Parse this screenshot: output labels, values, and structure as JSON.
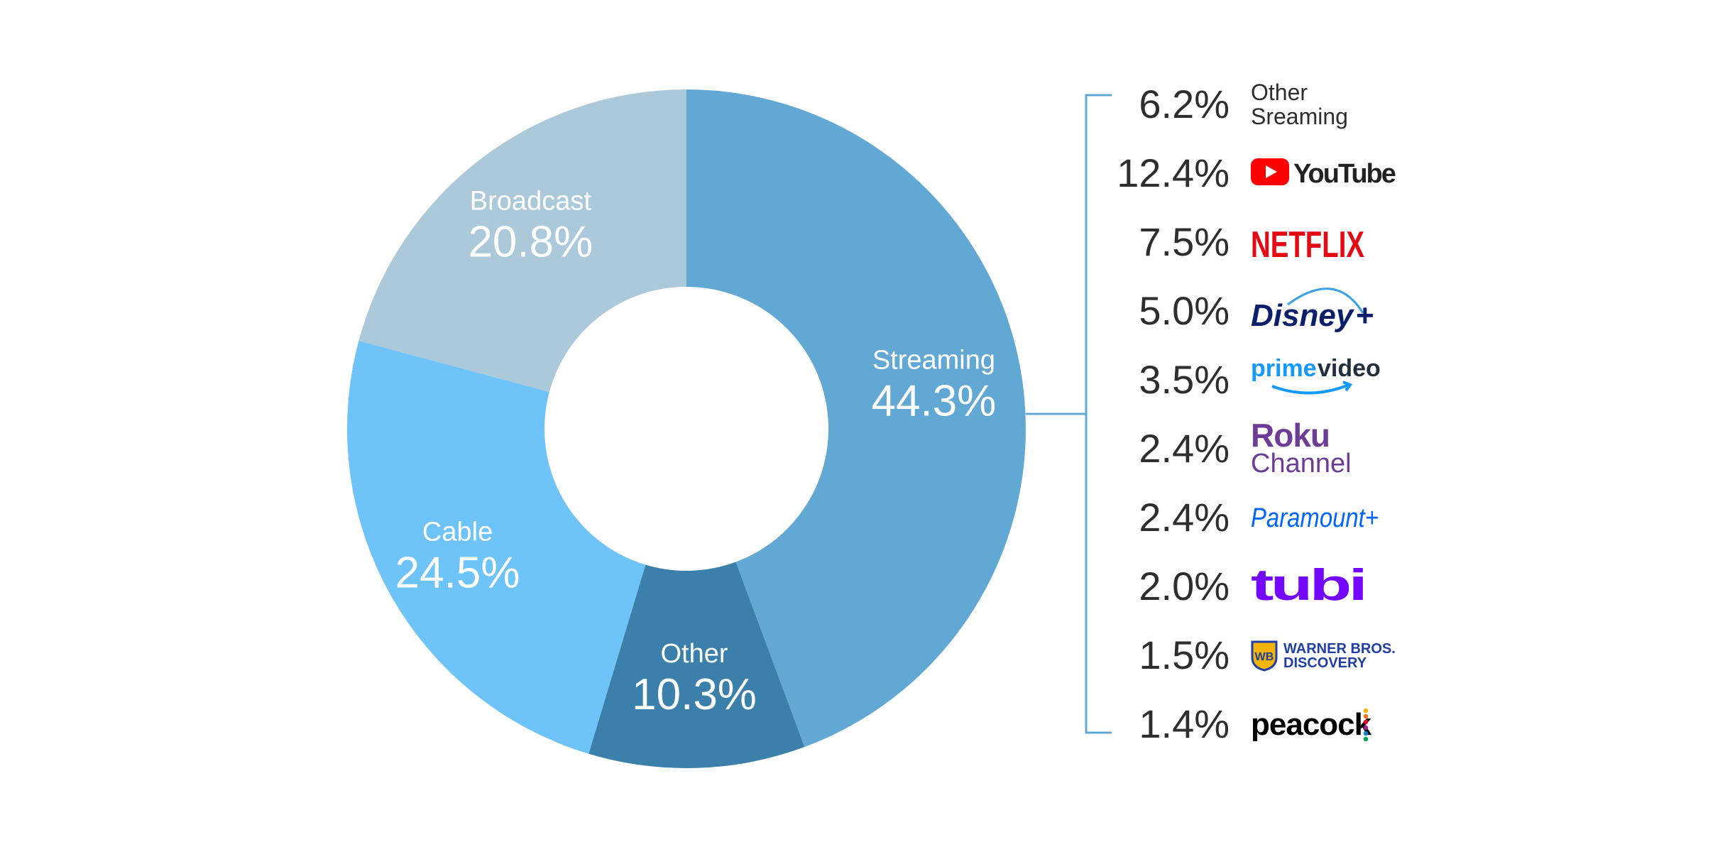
{
  "chart_data": {
    "type": "pie",
    "title": "",
    "segments": [
      {
        "label": "Streaming",
        "value": 44.3,
        "value_label": "44.3%",
        "color": "#62a8d4"
      },
      {
        "label": "Other",
        "value": 10.3,
        "value_label": "10.3%",
        "color": "#3b80ab"
      },
      {
        "label": "Cable",
        "value": 24.5,
        "value_label": "24.5%",
        "color": "#6ec3f8"
      },
      {
        "label": "Broadcast",
        "value": 20.8,
        "value_label": "20.8%",
        "color": "#acc9da"
      }
    ],
    "breakdown": {
      "of_segment": "Streaming",
      "bracket_color": "#62a8d4",
      "items": [
        {
          "value": 6.2,
          "value_label": "6.2%",
          "name": "Other Sreaming",
          "lines": [
            "Other",
            "Sreaming"
          ],
          "logo": "text"
        },
        {
          "value": 12.4,
          "value_label": "12.4%",
          "name": "YouTube",
          "logo": "youtube-logo",
          "color": "#ff0000"
        },
        {
          "value": 7.5,
          "value_label": "7.5%",
          "name": "NETFLIX",
          "logo": "netflix-logo",
          "color": "#e50914"
        },
        {
          "value": 5.0,
          "value_label": "5.0%",
          "name": "Disney+",
          "logo": "disney-plus-logo",
          "color": "#0b1f6b"
        },
        {
          "value": 3.5,
          "value_label": "3.5%",
          "name": "prime video",
          "logo": "prime-video-logo",
          "color": "#1399ff"
        },
        {
          "value": 2.4,
          "value_label": "2.4%",
          "name": "Roku Channel",
          "lines": [
            "Roku",
            "Channel"
          ],
          "logo": "roku-channel-logo",
          "color": "#6c3c97"
        },
        {
          "value": 2.4,
          "value_label": "2.4%",
          "name": "Paramount+",
          "logo": "paramount-plus-logo",
          "color": "#0064ff"
        },
        {
          "value": 2.0,
          "value_label": "2.0%",
          "name": "tubi",
          "logo": "tubi-logo",
          "color": "#7408ff"
        },
        {
          "value": 1.5,
          "value_label": "1.5%",
          "name": "WARNER BROS. DISCOVERY",
          "lines": [
            "WARNER BROS.",
            "DISCOVERY"
          ],
          "logo": "warner-bros-discovery-logo",
          "color": "#1f3fa6"
        },
        {
          "value": 1.4,
          "value_label": "1.4%",
          "name": "peacock",
          "logo": "peacock-logo",
          "color": "#000000"
        }
      ]
    }
  }
}
